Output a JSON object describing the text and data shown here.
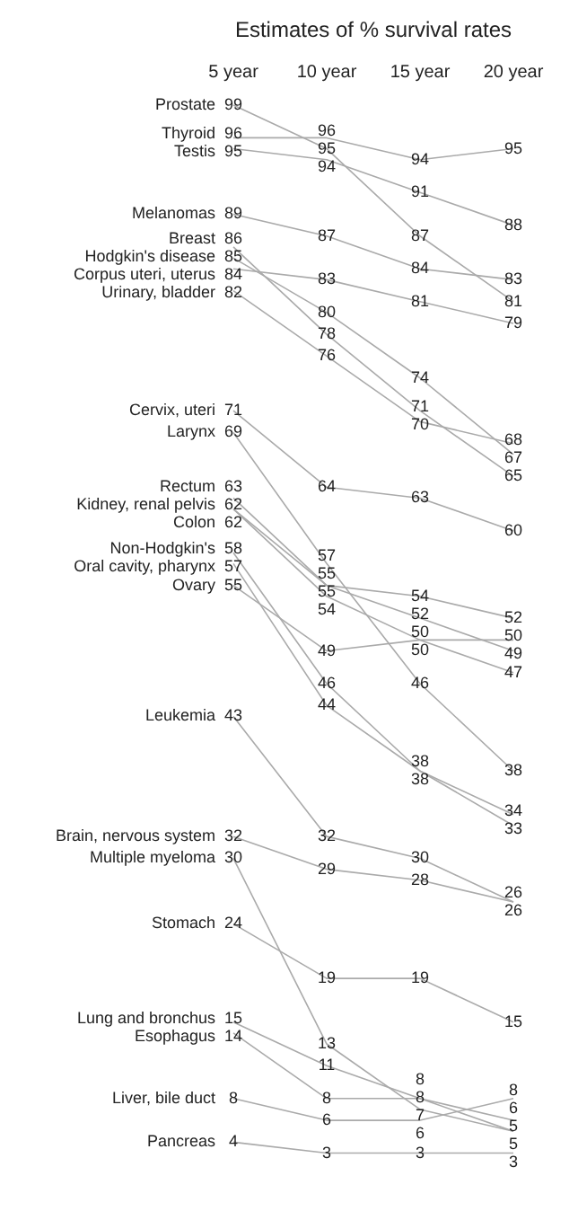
{
  "chart_data": {
    "type": "line",
    "title": "Estimates of % survival rates",
    "categories": [
      "5 year",
      "10 year",
      "15 year",
      "20 year"
    ],
    "data_labels": true,
    "tick_labels": "x",
    "legend": false,
    "marker": "none",
    "series": [
      {
        "name": "Prostate",
        "color": "#aaaaaa",
        "values": [
          99,
          95,
          87,
          81
        ]
      },
      {
        "name": "Thyroid",
        "color": "#aaaaaa",
        "values": [
          96,
          96,
          94,
          95
        ]
      },
      {
        "name": "Testis",
        "color": "#aaaaaa",
        "values": [
          95,
          94,
          91,
          88
        ]
      },
      {
        "name": "Melanomas",
        "color": "#aaaaaa",
        "values": [
          89,
          87,
          84,
          83
        ]
      },
      {
        "name": "Breast",
        "color": "#aaaaaa",
        "values": [
          86,
          78,
          71,
          65
        ]
      },
      {
        "name": "Hodgkin's disease",
        "color": "#aaaaaa",
        "values": [
          85,
          80,
          74,
          67
        ]
      },
      {
        "name": "Corpus uteri, uterus",
        "color": "#aaaaaa",
        "values": [
          84,
          83,
          81,
          79
        ]
      },
      {
        "name": "Urinary, bladder",
        "color": "#aaaaaa",
        "values": [
          82,
          76,
          70,
          68
        ]
      },
      {
        "name": "Cervix, uteri",
        "color": "#aaaaaa",
        "values": [
          71,
          64,
          63,
          60
        ]
      },
      {
        "name": "Larynx",
        "color": "#aaaaaa",
        "values": [
          69,
          57,
          46,
          38
        ]
      },
      {
        "name": "Rectum",
        "color": "#aaaaaa",
        "values": [
          63,
          55,
          52,
          49
        ]
      },
      {
        "name": "Kidney, renal pelvis",
        "color": "#aaaaaa",
        "values": [
          62,
          54,
          50,
          47
        ]
      },
      {
        "name": "Colon",
        "color": "#aaaaaa",
        "values": [
          62,
          55,
          54,
          52
        ]
      },
      {
        "name": "Non-Hodgkin's",
        "color": "#aaaaaa",
        "values": [
          58,
          46,
          38,
          34
        ]
      },
      {
        "name": "Oral cavity, pharynx",
        "color": "#aaaaaa",
        "values": [
          57,
          44,
          38,
          33
        ]
      },
      {
        "name": "Ovary",
        "color": "#aaaaaa",
        "values": [
          55,
          49,
          50,
          50
        ]
      },
      {
        "name": "Leukemia",
        "color": "#aaaaaa",
        "values": [
          43,
          32,
          30,
          26
        ]
      },
      {
        "name": "Brain, nervous system",
        "color": "#aaaaaa",
        "values": [
          32,
          29,
          28,
          26
        ]
      },
      {
        "name": "Multiple myeloma",
        "color": "#aaaaaa",
        "values": [
          30,
          13,
          7,
          5
        ]
      },
      {
        "name": "Stomach",
        "color": "#aaaaaa",
        "values": [
          24,
          19,
          19,
          15
        ]
      },
      {
        "name": "Lung and bronchus",
        "color": "#aaaaaa",
        "values": [
          15,
          11,
          8,
          6
        ]
      },
      {
        "name": "Esophagus",
        "color": "#aaaaaa",
        "values": [
          14,
          8,
          8,
          5
        ]
      },
      {
        "name": "Liver, bile duct",
        "color": "#aaaaaa",
        "values": [
          8,
          6,
          6,
          8
        ]
      },
      {
        "name": "Pancreas",
        "color": "#aaaaaa",
        "values": [
          4,
          3,
          3,
          3
        ]
      }
    ]
  }
}
